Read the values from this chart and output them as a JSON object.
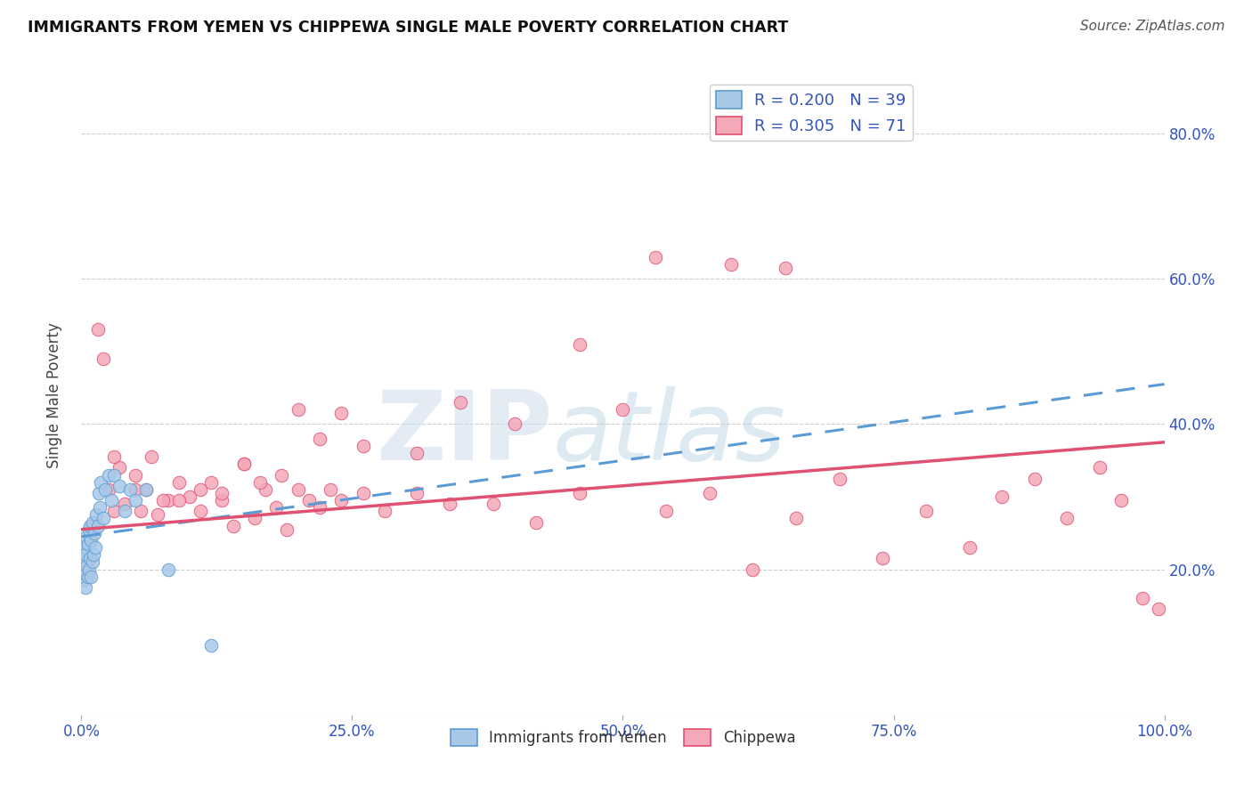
{
  "title": "IMMIGRANTS FROM YEMEN VS CHIPPEWA SINGLE MALE POVERTY CORRELATION CHART",
  "source": "Source: ZipAtlas.com",
  "ylabel": "Single Male Poverty",
  "legend_label_1": "R = 0.200   N = 39",
  "legend_label_2": "R = 0.305   N = 71",
  "color_blue": "#A8C8E8",
  "color_pink": "#F4A8B8",
  "line_blue": "#5B9BD5",
  "line_pink": "#E05070",
  "watermark_left": "ZIP",
  "watermark_right": "atlas",
  "xlim": [
    0.0,
    1.0
  ],
  "ylim": [
    0.0,
    0.88
  ],
  "yticks_right": [
    0.2,
    0.4,
    0.6,
    0.8
  ],
  "xticks": [
    0.0,
    0.25,
    0.5,
    0.75,
    1.0
  ],
  "blue_trend_start": 0.245,
  "blue_trend_end": 0.455,
  "pink_trend_start": 0.255,
  "pink_trend_end": 0.375,
  "blue_x": [
    0.001,
    0.002,
    0.002,
    0.003,
    0.003,
    0.004,
    0.004,
    0.005,
    0.005,
    0.006,
    0.006,
    0.007,
    0.007,
    0.008,
    0.008,
    0.009,
    0.009,
    0.01,
    0.01,
    0.011,
    0.012,
    0.013,
    0.014,
    0.015,
    0.016,
    0.017,
    0.018,
    0.02,
    0.022,
    0.025,
    0.028,
    0.03,
    0.035,
    0.04,
    0.045,
    0.05,
    0.06,
    0.08,
    0.12
  ],
  "blue_y": [
    0.21,
    0.185,
    0.225,
    0.195,
    0.23,
    0.175,
    0.22,
    0.205,
    0.245,
    0.19,
    0.235,
    0.2,
    0.255,
    0.215,
    0.26,
    0.19,
    0.24,
    0.21,
    0.265,
    0.22,
    0.25,
    0.23,
    0.275,
    0.26,
    0.305,
    0.285,
    0.32,
    0.27,
    0.31,
    0.33,
    0.295,
    0.33,
    0.315,
    0.28,
    0.31,
    0.295,
    0.31,
    0.2,
    0.095
  ],
  "pink_x": [
    0.015,
    0.02,
    0.025,
    0.03,
    0.035,
    0.04,
    0.05,
    0.055,
    0.06,
    0.07,
    0.08,
    0.09,
    0.1,
    0.11,
    0.12,
    0.13,
    0.14,
    0.15,
    0.16,
    0.17,
    0.18,
    0.19,
    0.2,
    0.21,
    0.22,
    0.23,
    0.24,
    0.26,
    0.28,
    0.31,
    0.34,
    0.38,
    0.42,
    0.46,
    0.5,
    0.54,
    0.58,
    0.62,
    0.66,
    0.7,
    0.74,
    0.78,
    0.82,
    0.85,
    0.88,
    0.91,
    0.94,
    0.96,
    0.98,
    0.995,
    0.03,
    0.05,
    0.065,
    0.075,
    0.09,
    0.11,
    0.13,
    0.15,
    0.165,
    0.185,
    0.2,
    0.22,
    0.24,
    0.26,
    0.31,
    0.35,
    0.4,
    0.46,
    0.53,
    0.6,
    0.65
  ],
  "pink_y": [
    0.53,
    0.49,
    0.31,
    0.28,
    0.34,
    0.29,
    0.33,
    0.28,
    0.31,
    0.275,
    0.295,
    0.32,
    0.3,
    0.28,
    0.32,
    0.295,
    0.26,
    0.345,
    0.27,
    0.31,
    0.285,
    0.255,
    0.31,
    0.295,
    0.285,
    0.31,
    0.295,
    0.305,
    0.28,
    0.305,
    0.29,
    0.29,
    0.265,
    0.305,
    0.42,
    0.28,
    0.305,
    0.2,
    0.27,
    0.325,
    0.215,
    0.28,
    0.23,
    0.3,
    0.325,
    0.27,
    0.34,
    0.295,
    0.16,
    0.145,
    0.355,
    0.31,
    0.355,
    0.295,
    0.295,
    0.31,
    0.305,
    0.345,
    0.32,
    0.33,
    0.42,
    0.38,
    0.415,
    0.37,
    0.36,
    0.43,
    0.4,
    0.51,
    0.63,
    0.62,
    0.615
  ]
}
